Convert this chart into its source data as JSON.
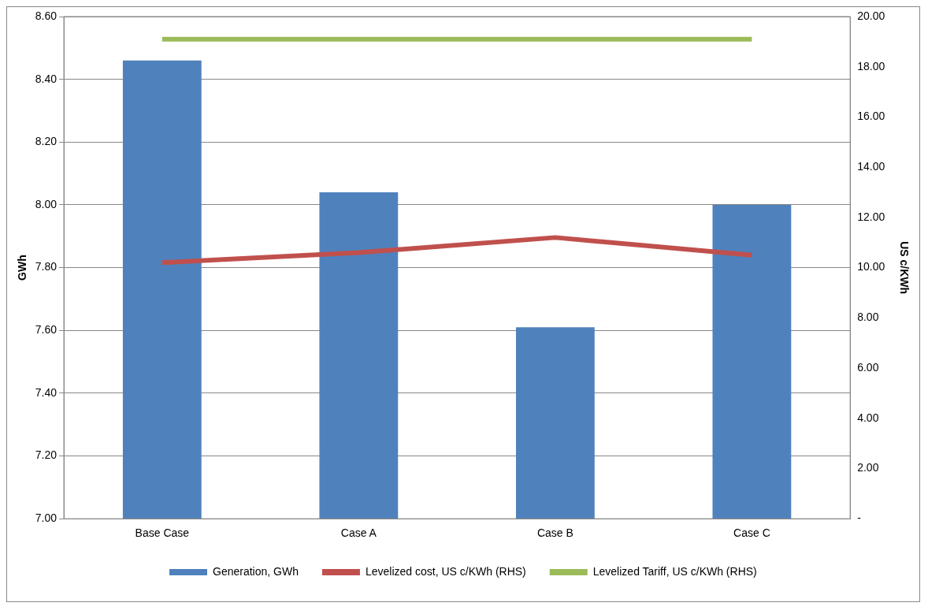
{
  "chart_data": {
    "type": "bar",
    "ylabel": "GWh",
    "y2label": "US c/KWh",
    "categories": [
      "Base Case",
      "Case A",
      "Case B",
      "Case C"
    ],
    "series": [
      {
        "name": "Generation, GWh",
        "color": "#4f81bd",
        "values": [
          8.46,
          8.04,
          7.61,
          8.0
        ]
      },
      {
        "name": "Levelized cost, US c/KWh (RHS)",
        "type": "line",
        "axis": "y2",
        "color": "#c0504d",
        "values": [
          10.2,
          10.6,
          11.2,
          10.5
        ]
      },
      {
        "name": "Levelized Tariff, US c/KWh (RHS)",
        "type": "line",
        "axis": "y2",
        "color": "#9bbb59",
        "values": [
          19.1,
          19.1,
          19.1,
          19.1
        ]
      }
    ],
    "ylim": [
      7,
      8.6
    ],
    "yticks": [
      {
        "value": 7,
        "label": "7.00"
      },
      {
        "value": 7.2,
        "label": "7.20"
      },
      {
        "value": 7.4,
        "label": "7.40"
      },
      {
        "value": 7.6,
        "label": "7.60"
      },
      {
        "value": 7.8,
        "label": "7.80"
      },
      {
        "value": 8,
        "label": "8.00"
      },
      {
        "value": 8.2,
        "label": "8.20"
      },
      {
        "value": 8.4,
        "label": "8.40"
      },
      {
        "value": 8.6,
        "label": "8.60"
      }
    ],
    "y2lim": [
      0,
      20
    ],
    "y2ticks": [
      {
        "value": 0,
        "label": "-"
      },
      {
        "value": 2,
        "label": "2.00"
      },
      {
        "value": 4,
        "label": "4.00"
      },
      {
        "value": 6,
        "label": "6.00"
      },
      {
        "value": 8,
        "label": "8.00"
      },
      {
        "value": 10,
        "label": "10.00"
      },
      {
        "value": 12,
        "label": "12.00"
      },
      {
        "value": 14,
        "label": "14.00"
      },
      {
        "value": 16,
        "label": "16.00"
      },
      {
        "value": 18,
        "label": "18.00"
      },
      {
        "value": 20,
        "label": "20.00"
      }
    ],
    "grid": "y",
    "legend": "bottom",
    "marker": "none",
    "line_style": "solid"
  }
}
